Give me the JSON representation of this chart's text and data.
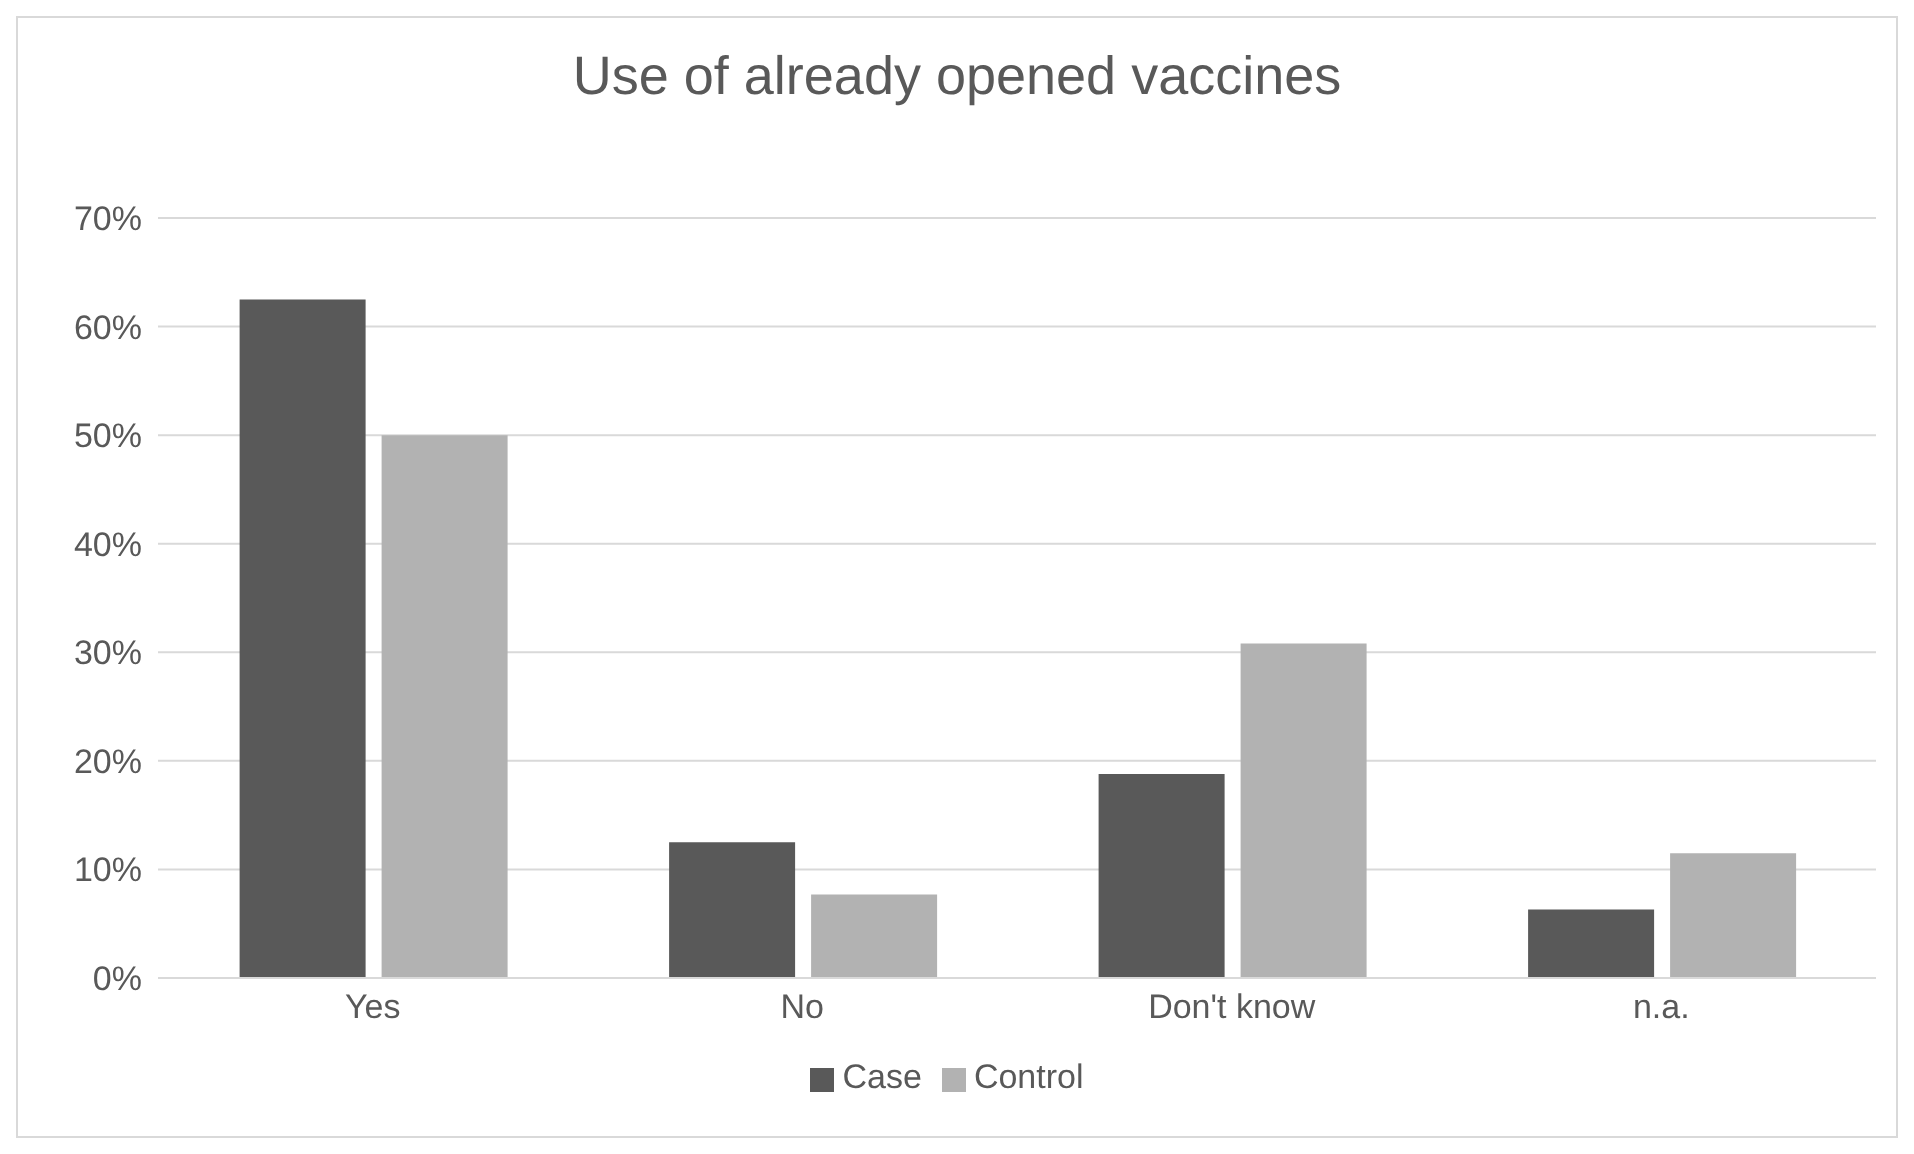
{
  "chart_data": {
    "type": "bar",
    "title": "Use of already opened vaccines",
    "categories": [
      "Yes",
      "No",
      "Don't know",
      "n.a."
    ],
    "series": [
      {
        "name": "Case",
        "color": "#595959",
        "values": [
          62.5,
          12.5,
          18.8,
          6.3
        ]
      },
      {
        "name": "Control",
        "color": "#b2b2b2",
        "values": [
          50,
          7.7,
          30.8,
          11.5
        ]
      }
    ],
    "ylim": [
      0,
      70
    ],
    "yticks": [
      {
        "value": 0,
        "label": "0%"
      },
      {
        "value": 10,
        "label": "10%"
      },
      {
        "value": 20,
        "label": "20%"
      },
      {
        "value": 30,
        "label": "30%"
      },
      {
        "value": 40,
        "label": "40%"
      },
      {
        "value": 50,
        "label": "50%"
      },
      {
        "value": 60,
        "label": "60%"
      },
      {
        "value": 70,
        "label": "70%"
      }
    ],
    "grid": "y",
    "legend": "bottom"
  }
}
